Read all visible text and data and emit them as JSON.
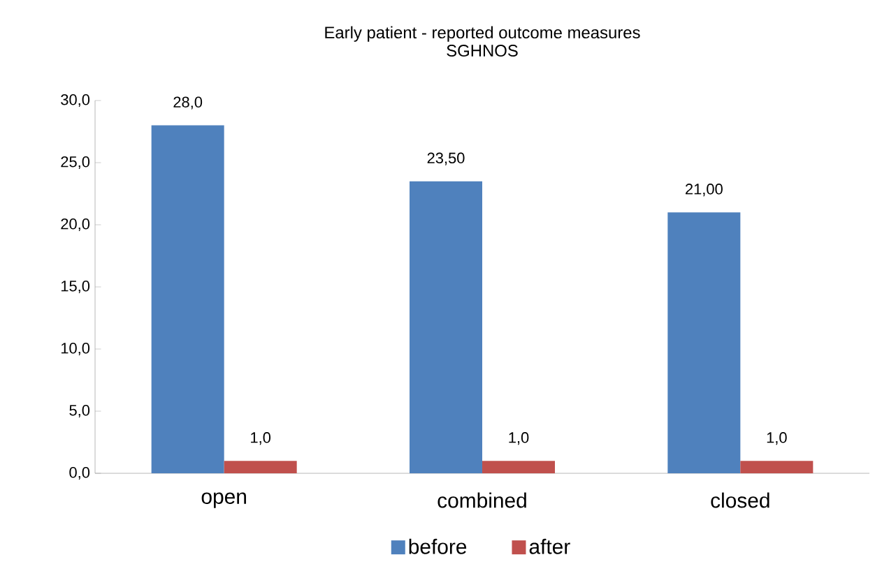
{
  "chart_data": {
    "type": "bar",
    "title": "Early patient - reported outcome measures",
    "subtitle": "SGHNOS",
    "categories": [
      "open",
      "combined",
      "closed"
    ],
    "series": [
      {
        "name": "before",
        "color": "#4f81bd",
        "values": [
          28.0,
          23.5,
          21.0
        ],
        "value_labels": [
          "28,0",
          "23,50",
          "21,00"
        ]
      },
      {
        "name": "after",
        "color": "#c0504d",
        "values": [
          1.0,
          1.0,
          1.0
        ],
        "value_labels": [
          "1,0",
          "1,0",
          "1,0"
        ]
      }
    ],
    "ylim": [
      0,
      30
    ],
    "yticks": [
      {
        "value": 0,
        "label": "0,0"
      },
      {
        "value": 5,
        "label": "5,0"
      },
      {
        "value": 10,
        "label": "10,0"
      },
      {
        "value": 15,
        "label": "15,0"
      },
      {
        "value": 20,
        "label": "20,0"
      },
      {
        "value": 25,
        "label": "25,0"
      },
      {
        "value": 30,
        "label": "30,0"
      }
    ],
    "grid": false,
    "legend": "bottom"
  }
}
